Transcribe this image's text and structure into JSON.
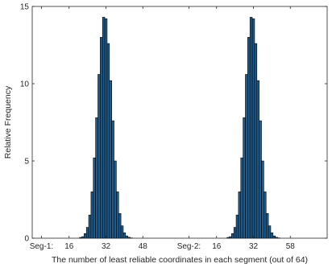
{
  "chart_data": {
    "type": "bar",
    "title": "",
    "xlabel": "The number of least reliable coordinates in each segment (out of 64)",
    "ylabel": "Relative Frequency",
    "ylim": [
      0,
      15
    ],
    "yticks": [
      0,
      5,
      10,
      15
    ],
    "grid": false,
    "bar_color": "#1f5c8c",
    "bar_edge": "#000000",
    "segments": [
      {
        "label": "Seg-1:",
        "ticks": [
          "16",
          "32",
          "48"
        ],
        "x": [
          21,
          22,
          23,
          24,
          25,
          26,
          27,
          28,
          29,
          30,
          31,
          32,
          33,
          34,
          35,
          36,
          37,
          38,
          39,
          40,
          41,
          42,
          43
        ],
        "values": [
          0.05,
          0.1,
          0.3,
          0.7,
          1.5,
          3.0,
          5.2,
          7.8,
          10.6,
          13.0,
          14.3,
          14.2,
          12.6,
          10.2,
          7.6,
          5.0,
          3.0,
          1.6,
          0.8,
          0.35,
          0.15,
          0.06,
          0.02
        ]
      },
      {
        "label": "Seg-2:",
        "ticks": [
          "16",
          "32",
          "58"
        ],
        "x": [
          21,
          22,
          23,
          24,
          25,
          26,
          27,
          28,
          29,
          30,
          31,
          32,
          33,
          34,
          35,
          36,
          37,
          38,
          39,
          40,
          41,
          42,
          43
        ],
        "values": [
          0.05,
          0.1,
          0.3,
          0.7,
          1.5,
          3.0,
          5.2,
          7.8,
          10.6,
          13.0,
          14.3,
          14.2,
          12.6,
          10.2,
          7.6,
          5.0,
          3.0,
          1.6,
          0.8,
          0.35,
          0.15,
          0.06,
          0.02
        ]
      }
    ]
  }
}
